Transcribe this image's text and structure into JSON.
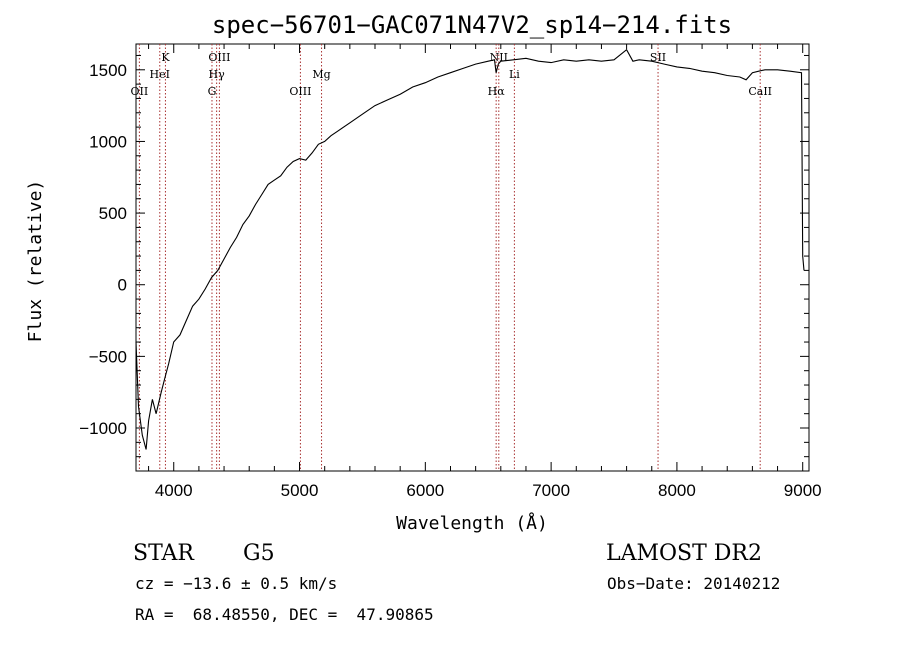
{
  "chart_data": {
    "type": "line",
    "title": "spec−56701−GAC071N47V2_sp14−214.fits",
    "xlabel": "Wavelength (Å)",
    "ylabel": "Flux (relative)",
    "xlim": [
      3700,
      9050
    ],
    "ylim": [
      -1300,
      1680
    ],
    "xticks": [
      4000,
      5000,
      6000,
      7000,
      8000,
      9000
    ],
    "yticks": [
      -1000,
      -500,
      0,
      500,
      1000,
      1500
    ],
    "ytick_labels": [
      "−1000",
      "−500",
      "0",
      "500",
      "1000",
      "1500"
    ],
    "grid": false,
    "series": [
      {
        "x": [
          3700,
          3720,
          3750,
          3780,
          3800,
          3830,
          3860,
          3900,
          3930,
          3960,
          4000,
          4050,
          4100,
          4150,
          4200,
          4250,
          4300,
          4350,
          4400,
          4450,
          4500,
          4550,
          4600,
          4650,
          4700,
          4750,
          4800,
          4850,
          4900,
          4950,
          5000,
          5050,
          5100,
          5150,
          5200,
          5250,
          5300,
          5400,
          5500,
          5600,
          5700,
          5800,
          5900,
          6000,
          6100,
          6200,
          6300,
          6400,
          6500,
          6550,
          6563,
          6580,
          6600,
          6700,
          6800,
          6900,
          7000,
          7100,
          7200,
          7300,
          7400,
          7500,
          7600,
          7650,
          7700,
          7800,
          7900,
          8000,
          8100,
          8200,
          8300,
          8400,
          8500,
          8550,
          8600,
          8650,
          8700,
          8800,
          8900,
          8990,
          9000,
          9010
        ],
        "y": [
          -400,
          -850,
          -1050,
          -1150,
          -950,
          -800,
          -900,
          -750,
          -650,
          -550,
          -400,
          -350,
          -250,
          -150,
          -100,
          -30,
          50,
          100,
          180,
          260,
          330,
          420,
          480,
          560,
          630,
          700,
          730,
          760,
          820,
          860,
          880,
          870,
          920,
          980,
          1000,
          1040,
          1070,
          1130,
          1190,
          1250,
          1290,
          1330,
          1380,
          1410,
          1450,
          1480,
          1510,
          1540,
          1560,
          1570,
          1480,
          1540,
          1560,
          1570,
          1580,
          1560,
          1550,
          1570,
          1560,
          1570,
          1560,
          1570,
          1640,
          1560,
          1570,
          1560,
          1540,
          1520,
          1510,
          1490,
          1480,
          1460,
          1450,
          1430,
          1480,
          1490,
          1500,
          1500,
          1490,
          1480,
          200,
          100
        ]
      }
    ],
    "lines": [
      {
        "label": "OII",
        "x": 3727,
        "row": 3
      },
      {
        "label": "K",
        "x": 3934,
        "row": 1
      },
      {
        "label": "HeI",
        "x": 3889,
        "row": 2
      },
      {
        "label": "OIII",
        "x": 4363,
        "row": 1
      },
      {
        "label": "Hγ",
        "x": 4341,
        "row": 2
      },
      {
        "label": "G",
        "x": 4304,
        "row": 3
      },
      {
        "label": "OIII",
        "x": 5007,
        "row": 3
      },
      {
        "label": "Mg",
        "x": 5175,
        "row": 2
      },
      {
        "label": "NII",
        "x": 6584,
        "row": 1
      },
      {
        "label": "Hα",
        "x": 6563,
        "row": 3
      },
      {
        "label": "Li",
        "x": 6708,
        "row": 2
      },
      {
        "label": "SII",
        "x": 7850,
        "row": 1
      },
      {
        "label": "CaII",
        "x": 8662,
        "row": 3
      }
    ]
  },
  "info": {
    "class": "STAR",
    "subclass": "G5",
    "survey": "LAMOST DR2",
    "cz": "cz = −13.6 ± 0.5 km/s",
    "obs_date": "Obs−Date: 20140212",
    "coords": "RA =  68.48550, DEC =  47.90865"
  }
}
